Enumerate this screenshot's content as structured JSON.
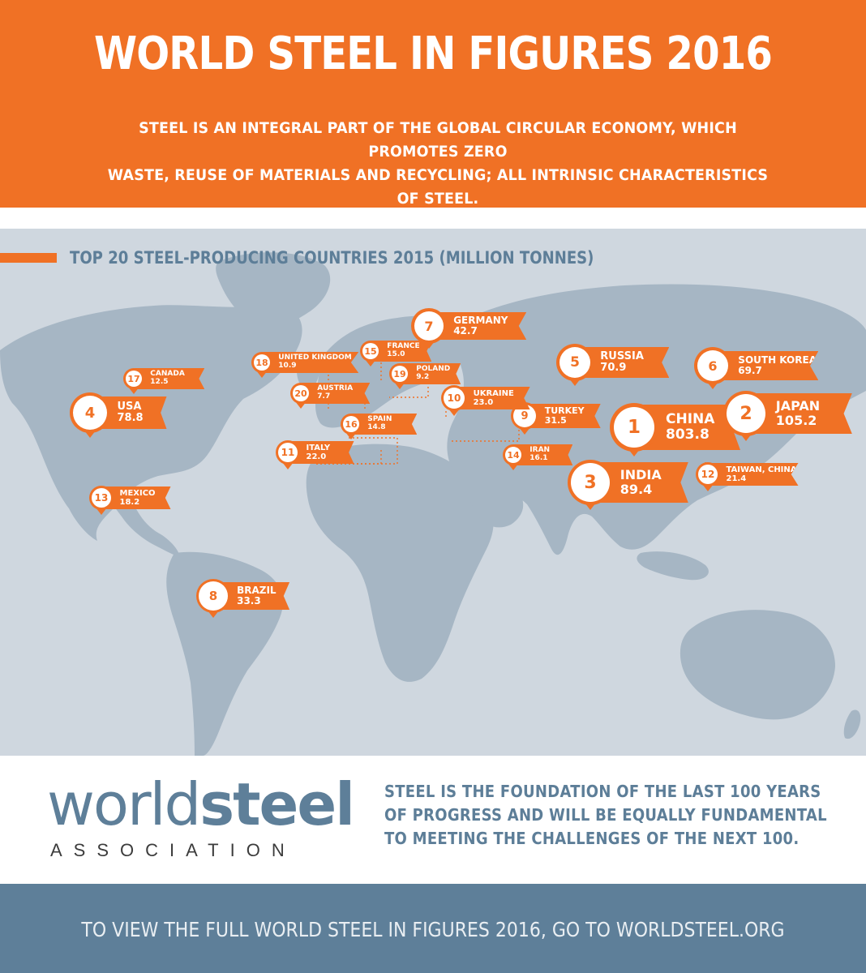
{
  "header": {
    "title": "WORLD STEEL IN FIGURES 2016",
    "subtitle_line1": "STEEL IS AN INTEGRAL PART OF THE GLOBAL CIRCULAR ECONOMY, WHICH PROMOTES ZERO",
    "subtitle_line2": "WASTE, REUSE OF MATERIALS AND RECYCLING; ALL INTRINSIC CHARACTERISTICS OF STEEL."
  },
  "map": {
    "title": "TOP 20 STEEL-PRODUCING COUNTRIES 2015 (MILLION TONNES)",
    "countries": [
      {
        "rank": "1",
        "name": "CHINA",
        "value": "803.8"
      },
      {
        "rank": "2",
        "name": "JAPAN",
        "value": "105.2"
      },
      {
        "rank": "3",
        "name": "INDIA",
        "value": "89.4"
      },
      {
        "rank": "4",
        "name": "USA",
        "value": "78.8"
      },
      {
        "rank": "5",
        "name": "RUSSIA",
        "value": "70.9"
      },
      {
        "rank": "6",
        "name": "SOUTH KOREA",
        "value": "69.7"
      },
      {
        "rank": "7",
        "name": "GERMANY",
        "value": "42.7"
      },
      {
        "rank": "8",
        "name": "BRAZIL",
        "value": "33.3"
      },
      {
        "rank": "9",
        "name": "TURKEY",
        "value": "31.5"
      },
      {
        "rank": "10",
        "name": "UKRAINE",
        "value": "23.0"
      },
      {
        "rank": "11",
        "name": "ITALY",
        "value": "22.0"
      },
      {
        "rank": "12",
        "name": "TAIWAN, CHINA",
        "value": "21.4"
      },
      {
        "rank": "13",
        "name": "MEXICO",
        "value": "18.2"
      },
      {
        "rank": "14",
        "name": "IRAN",
        "value": "16.1"
      },
      {
        "rank": "15",
        "name": "FRANCE",
        "value": "15.0"
      },
      {
        "rank": "16",
        "name": "SPAIN",
        "value": "14.8"
      },
      {
        "rank": "17",
        "name": "CANADA",
        "value": "12.5"
      },
      {
        "rank": "18",
        "name": "UNITED KINGDOM",
        "value": "10.9"
      },
      {
        "rank": "19",
        "name": "POLAND",
        "value": "9.2"
      },
      {
        "rank": "20",
        "name": "AUSTRIA",
        "value": "7.7"
      }
    ]
  },
  "logo": {
    "word_light": "world",
    "word_bold": "steel",
    "sub": "ASSOCIATION"
  },
  "tagline": {
    "line1": "STEEL IS THE FOUNDATION OF THE LAST 100 YEARS",
    "line2": "OF PROGRESS AND WILL BE EQUALLY FUNDAMENTAL",
    "line3": "TO MEETING THE CHALLENGES OF THE NEXT 100."
  },
  "footer": {
    "text": "TO VIEW THE FULL WORLD STEEL IN FIGURES 2016, GO TO WORLDSTEEL.ORG"
  },
  "colors": {
    "orange": "#f07125",
    "steel_blue": "#5e7f99",
    "ocean": "#cfd7df",
    "land": "#a6b6c4"
  }
}
